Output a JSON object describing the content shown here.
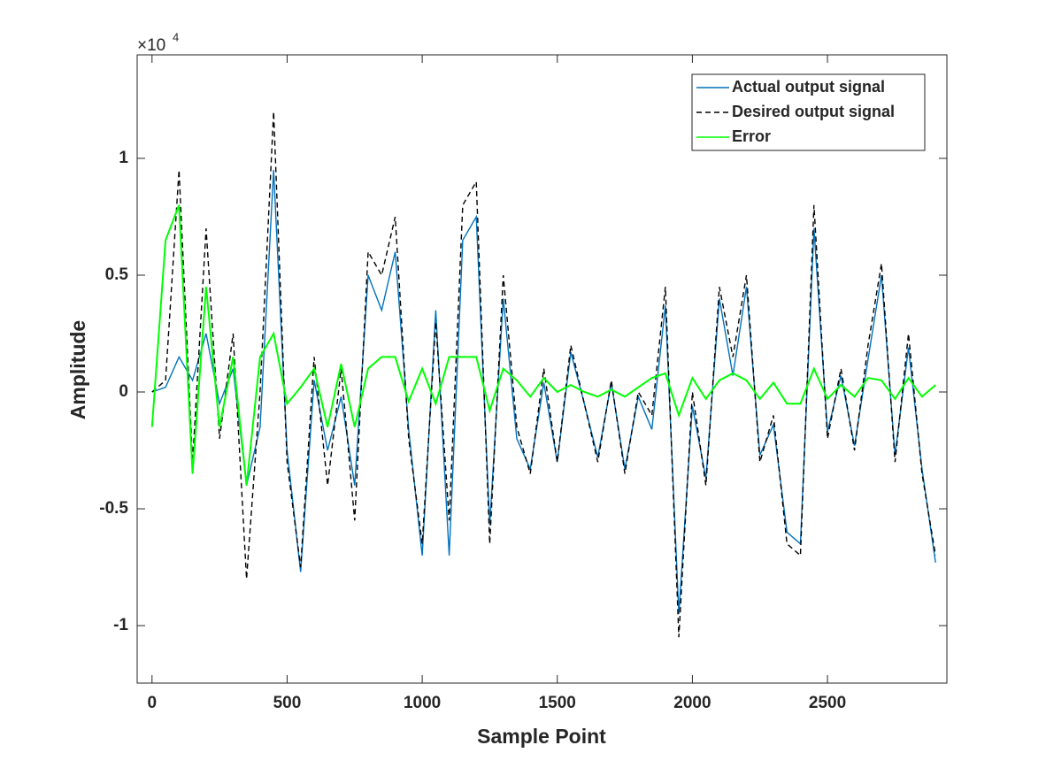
{
  "chart_data": {
    "type": "line",
    "xlabel": "Sample Point",
    "ylabel": "Amplitude",
    "y_exponent_base": "×10",
    "y_exponent_power": "4",
    "x": [
      0,
      50,
      100,
      150,
      200,
      250,
      300,
      350,
      400,
      450,
      500,
      550,
      600,
      650,
      700,
      750,
      800,
      850,
      900,
      950,
      1000,
      1050,
      1100,
      1150,
      1200,
      1250,
      1300,
      1350,
      1400,
      1450,
      1500,
      1550,
      1600,
      1650,
      1700,
      1750,
      1800,
      1850,
      1900,
      1950,
      2000,
      2050,
      2100,
      2150,
      2200,
      2250,
      2300,
      2350,
      2400,
      2450,
      2500,
      2550,
      2600,
      2650,
      2700,
      2750,
      2800,
      2850,
      2900
    ],
    "series": [
      {
        "name": "Actual output signal",
        "color": "#0072bd",
        "dash": "solid",
        "values": [
          0,
          200,
          1500,
          500,
          2500,
          -500,
          1000,
          -4000,
          -1500,
          9500,
          -2500,
          -7700,
          500,
          -2500,
          -200,
          -4000,
          5000,
          3500,
          6000,
          -1600,
          -7000,
          3500,
          -7000,
          6500,
          7500,
          -5700,
          4000,
          -2000,
          -3300,
          400,
          -3000,
          1700,
          -500,
          -2800,
          400,
          -3300,
          -200,
          -1600,
          3700,
          -9500,
          -600,
          -3700,
          4000,
          700,
          4500,
          -2700,
          -1400,
          -6000,
          -6500,
          7000,
          -1700,
          700,
          -2300,
          1400,
          5000,
          -2700,
          1900,
          -3300,
          -7300
        ]
      },
      {
        "name": "Desired output signal",
        "color": "#000000",
        "dash": "dashed",
        "values": [
          0,
          500,
          9500,
          -3000,
          7000,
          -2000,
          2500,
          -8000,
          0,
          12000,
          -3000,
          -7500,
          1500,
          -4000,
          1000,
          -5500,
          6000,
          5000,
          7500,
          -2000,
          -6500,
          3000,
          -5500,
          8000,
          9000,
          -6500,
          5000,
          -1500,
          -3500,
          1000,
          -3000,
          2000,
          -500,
          -3000,
          500,
          -3500,
          0,
          -1000,
          4500,
          -10500,
          0,
          -4000,
          4500,
          1500,
          5000,
          -3000,
          -1000,
          -6500,
          -7000,
          8000,
          -2000,
          1000,
          -2500,
          2000,
          5500,
          -3000,
          2500,
          -3500,
          -7000
        ]
      },
      {
        "name": "Error",
        "color": "#00ff00",
        "dash": "solid",
        "values": [
          -1500,
          6500,
          8000,
          -3500,
          4500,
          -1500,
          1500,
          -4000,
          1500,
          2500,
          -500,
          200,
          1000,
          -1500,
          1200,
          -1500,
          1000,
          1500,
          1500,
          -400,
          1000,
          -500,
          1500,
          1500,
          1500,
          -800,
          1000,
          500,
          -200,
          600,
          0,
          300,
          0,
          -200,
          100,
          -200,
          200,
          600,
          800,
          -1000,
          600,
          -300,
          500,
          800,
          500,
          -300,
          400,
          -500,
          -500,
          1000,
          -300,
          300,
          -200,
          600,
          500,
          -300,
          600,
          -200,
          300
        ]
      }
    ],
    "xlim": [
      -55,
      2942
    ],
    "xticks": [
      0,
      500,
      1000,
      1500,
      2000,
      2500
    ],
    "ylim": [
      -12460,
      14430
    ],
    "yticks": [
      {
        "value": -10000,
        "label": "-1"
      },
      {
        "value": -5000,
        "label": "-0.5"
      },
      {
        "value": 0,
        "label": "0"
      },
      {
        "value": 5000,
        "label": "0.5"
      },
      {
        "value": 10000,
        "label": "1"
      }
    ],
    "legend": "top right",
    "grid": false
  }
}
